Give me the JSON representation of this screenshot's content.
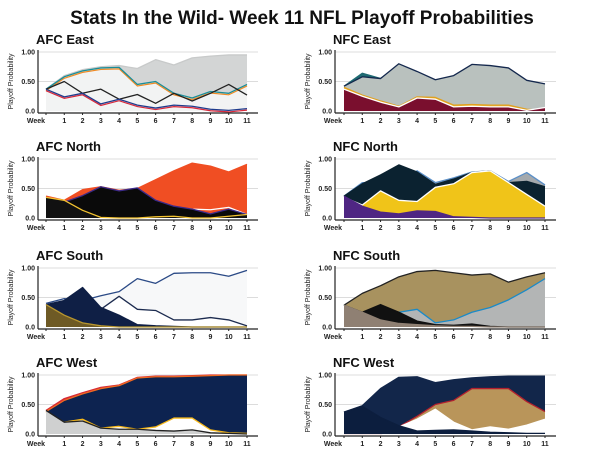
{
  "chart_data": {
    "title": "Stats In the Wild- Week 11 NFL Playoff Probabilities",
    "panels": [
      {
        "title": "AFC East",
        "type": "area",
        "ylabel": "Playoff Probability",
        "x_tick_labels": [
          "Week",
          "1",
          "2",
          "3",
          "4",
          "5",
          "6",
          "7",
          "8",
          "9",
          "10",
          "11"
        ],
        "y_tick_labels": [
          "1.00",
          "0.50",
          "0.0"
        ],
        "ylim": [
          0,
          1
        ],
        "grid": true,
        "series": [
          {
            "fill": "#d3d5d5",
            "stroke": "#c8caca",
            "values": [
              0.37,
              0.6,
              0.7,
              0.75,
              0.77,
              0.72,
              0.87,
              0.78,
              0.9,
              0.93,
              0.95,
              0.95
            ]
          },
          {
            "fill": "#f2f3f3",
            "stroke": "#1a8d98",
            "stroke2": "#f08a24",
            "values": [
              0.37,
              0.58,
              0.68,
              0.73,
              0.74,
              0.45,
              0.5,
              0.3,
              0.22,
              0.33,
              0.3,
              0.45
            ]
          },
          {
            "fill": "none",
            "stroke": "#222222",
            "values": [
              0.37,
              0.5,
              0.3,
              0.37,
              0.2,
              0.28,
              0.13,
              0.3,
              0.17,
              0.3,
              0.45,
              0.27
            ]
          },
          {
            "fill": "none",
            "stroke": "#1f3b8c",
            "stroke2": "#d8283a",
            "values": [
              0.37,
              0.24,
              0.3,
              0.12,
              0.2,
              0.1,
              0.05,
              0.1,
              0.08,
              0.03,
              0.01,
              0.04
            ]
          }
        ]
      },
      {
        "title": "NFC East",
        "type": "area",
        "ylabel": "Playoff Probability",
        "x_tick_labels": [
          "Week",
          "1",
          "2",
          "3",
          "4",
          "5",
          "6",
          "7",
          "8",
          "9",
          "10",
          "11"
        ],
        "y_tick_labels": [
          "1.00",
          "0.50",
          "0.0"
        ],
        "ylim": [
          0,
          1
        ],
        "grid": true,
        "series": [
          {
            "fill": "#1f6a72",
            "stroke": "#1f6a72",
            "values": [
              0.42,
              0.64,
              0.55,
              0.78,
              0.65,
              0.5,
              0.58,
              0.76,
              0.74,
              0.7,
              0.5,
              0.44
            ]
          },
          {
            "fill": "#b9c1be",
            "stroke": "#14284d",
            "values": [
              0.42,
              0.58,
              0.55,
              0.8,
              0.67,
              0.53,
              0.6,
              0.79,
              0.77,
              0.73,
              0.52,
              0.46
            ]
          },
          {
            "fill": "#f2b630",
            "stroke": "#e0a020",
            "values": [
              0.4,
              0.27,
              0.17,
              0.08,
              0.24,
              0.23,
              0.1,
              0.11,
              0.1,
              0.1,
              0.03,
              0.01
            ]
          },
          {
            "fill": "#7a0f2e",
            "stroke": "#ffffff",
            "values": [
              0.37,
              0.25,
              0.15,
              0.07,
              0.22,
              0.2,
              0.07,
              0.08,
              0.07,
              0.07,
              0.01,
              0.06
            ]
          }
        ]
      },
      {
        "title": "AFC North",
        "type": "area",
        "ylabel": "Playoff Probability",
        "x_tick_labels": [
          "Week",
          "1",
          "2",
          "3",
          "4",
          "5",
          "6",
          "7",
          "8",
          "9",
          "10",
          "11"
        ],
        "y_tick_labels": [
          "1.00",
          "0.50",
          "0.0"
        ],
        "ylim": [
          0,
          1
        ],
        "grid": true,
        "series": [
          {
            "fill": "#f04e23",
            "stroke": "#f04e23",
            "values": [
              0.37,
              0.3,
              0.48,
              0.53,
              0.47,
              0.5,
              0.65,
              0.8,
              0.93,
              0.88,
              0.78,
              0.91
            ]
          },
          {
            "fill": "#f04e23",
            "stroke": "#ffffff",
            "values": [
              0.3,
              0.25,
              0.3,
              0.35,
              0.3,
              0.28,
              0.2,
              0.18,
              0.15,
              0.14,
              0.18,
              0.06
            ]
          },
          {
            "fill": "#0a0a0a",
            "stroke": "#3b2a8a",
            "values": [
              0.35,
              0.27,
              0.38,
              0.53,
              0.46,
              0.51,
              0.3,
              0.2,
              0.15,
              0.07,
              0.15,
              0.06
            ]
          },
          {
            "fill": "#111111",
            "stroke": "#f2c230",
            "values": [
              0.35,
              0.3,
              0.13,
              0.01,
              0.0,
              0.0,
              0.02,
              0.03,
              0.0,
              0.0,
              0.03,
              0.06
            ]
          }
        ]
      },
      {
        "title": "NFC North",
        "type": "area",
        "ylabel": "Playoff Probability",
        "x_tick_labels": [
          "Week",
          "1",
          "2",
          "3",
          "4",
          "5",
          "6",
          "7",
          "8",
          "9",
          "10",
          "11"
        ],
        "y_tick_labels": [
          "1.00",
          "0.50",
          "0.0"
        ],
        "ylim": [
          0,
          1
        ],
        "grid": true,
        "series": [
          {
            "fill": "#a4a9ad",
            "stroke": "#5a8fc8",
            "values": [
              0.37,
              0.6,
              0.6,
              0.6,
              0.8,
              0.6,
              0.68,
              0.78,
              0.8,
              0.62,
              0.77,
              0.56
            ]
          },
          {
            "fill": "#0b2230",
            "stroke": "#0b2230",
            "values": [
              0.37,
              0.58,
              0.73,
              0.9,
              0.78,
              0.57,
              0.66,
              0.77,
              0.8,
              0.6,
              0.62,
              0.53
            ]
          },
          {
            "fill": "#f0c419",
            "stroke": "#ffffff",
            "values": [
              0.35,
              0.22,
              0.46,
              0.3,
              0.28,
              0.52,
              0.58,
              0.77,
              0.8,
              0.6,
              0.4,
              0.2
            ]
          },
          {
            "fill": "#4f2683",
            "stroke": "#4f2683",
            "values": [
              0.37,
              0.2,
              0.1,
              0.07,
              0.12,
              0.11,
              0.02,
              0.01,
              0.0,
              0.0,
              0.0,
              0.0
            ]
          }
        ]
      },
      {
        "title": "AFC South",
        "type": "area",
        "ylabel": "Playoff Probability",
        "x_tick_labels": [
          "Week",
          "1",
          "2",
          "3",
          "4",
          "5",
          "6",
          "7",
          "8",
          "9",
          "10",
          "11"
        ],
        "y_tick_labels": [
          "1.00",
          "0.50",
          "0.0"
        ],
        "ylim": [
          0,
          1
        ],
        "grid": true,
        "series": [
          {
            "fill": "#f7f8f9",
            "stroke": "#2b4a86",
            "values": [
              0.4,
              0.48,
              0.45,
              0.53,
              0.6,
              0.82,
              0.74,
              0.91,
              0.92,
              0.92,
              0.86,
              0.96
            ]
          },
          {
            "fill": "#ffffff",
            "stroke": "#1c2b4f",
            "values": [
              0.38,
              0.3,
              0.28,
              0.3,
              0.52,
              0.3,
              0.28,
              0.12,
              0.12,
              0.16,
              0.12,
              0.02
            ]
          },
          {
            "fill": "#0f1f45",
            "stroke": "#0f1f45",
            "values": [
              0.38,
              0.45,
              0.67,
              0.33,
              0.2,
              0.04,
              0.02,
              0.01,
              0.0,
              0.0,
              0.0,
              0.0
            ]
          },
          {
            "fill": "#6e5a25",
            "stroke": "#b8962e",
            "values": [
              0.38,
              0.2,
              0.07,
              0.02,
              0.0,
              0.0,
              0.0,
              0.0,
              0.0,
              0.0,
              0.0,
              0.0
            ]
          }
        ]
      },
      {
        "title": "NFC South",
        "type": "area",
        "ylabel": "Playoff Probability",
        "x_tick_labels": [
          "Week",
          "1",
          "2",
          "3",
          "4",
          "5",
          "6",
          "7",
          "8",
          "9",
          "10",
          "11"
        ],
        "y_tick_labels": [
          "1.00",
          "0.50",
          "0.0"
        ],
        "ylim": [
          0,
          1
        ],
        "grid": true,
        "series": [
          {
            "fill": "#a8925f",
            "stroke": "#222222",
            "values": [
              0.37,
              0.57,
              0.7,
              0.85,
              0.94,
              0.96,
              0.92,
              0.88,
              0.9,
              0.76,
              0.85,
              0.92
            ]
          },
          {
            "fill": "#b3b5b5",
            "stroke": "#1a8ac8",
            "values": [
              0.37,
              0.2,
              0.2,
              0.25,
              0.3,
              0.07,
              0.12,
              0.25,
              0.33,
              0.46,
              0.63,
              0.82
            ]
          },
          {
            "fill": "#111111",
            "stroke": "#111111",
            "values": [
              0.37,
              0.25,
              0.38,
              0.25,
              0.1,
              0.04,
              0.03,
              0.05,
              0.01,
              0.0,
              0.0,
              0.0
            ]
          },
          {
            "fill": "#8f8073",
            "stroke": "#8f8073",
            "values": [
              0.37,
              0.25,
              0.12,
              0.06,
              0.04,
              0.02,
              0.01,
              0.01,
              0.0,
              0.0,
              0.0,
              0.0
            ]
          }
        ]
      },
      {
        "title": "AFC West",
        "type": "area",
        "ylabel": "Playoff Probability",
        "x_tick_labels": [
          "Week",
          "1",
          "2",
          "3",
          "4",
          "5",
          "6",
          "7",
          "8",
          "9",
          "10",
          "11"
        ],
        "y_tick_labels": [
          "1.00",
          "0.50",
          "0.0"
        ],
        "ylim": [
          0,
          1
        ],
        "grid": true,
        "series": [
          {
            "fill": "#d62a36",
            "stroke": "#d62a36",
            "values": [
              0.4,
              0.6,
              0.7,
              0.79,
              0.83,
              0.96,
              0.98,
              0.98,
              0.99,
              1.0,
              1.0,
              1.0
            ]
          },
          {
            "fill": "#0d2350",
            "stroke": "#f06a20",
            "values": [
              0.38,
              0.57,
              0.68,
              0.77,
              0.82,
              0.95,
              0.97,
              0.97,
              0.98,
              0.99,
              1.0,
              1.0
            ]
          },
          {
            "fill": "#ffffff",
            "stroke": "#f6b81a",
            "values": [
              0.37,
              0.2,
              0.25,
              0.1,
              0.13,
              0.08,
              0.12,
              0.27,
              0.27,
              0.07,
              0.02,
              0.01
            ]
          },
          {
            "fill": "#cfd0d0",
            "stroke": "#222222",
            "values": [
              0.4,
              0.2,
              0.22,
              0.1,
              0.08,
              0.08,
              0.06,
              0.05,
              0.07,
              0.02,
              0.01,
              0.0
            ]
          }
        ]
      },
      {
        "title": "NFC West",
        "type": "area",
        "ylabel": "Playoff Probability",
        "x_tick_labels": [
          "Week",
          "1",
          "2",
          "3",
          "4",
          "5",
          "6",
          "7",
          "8",
          "9",
          "10",
          "11"
        ],
        "y_tick_labels": [
          "1.00",
          "0.50",
          "0.0"
        ],
        "ylim": [
          0,
          1
        ],
        "grid": true,
        "series": [
          {
            "fill": "#12264a",
            "stroke": "#12264a",
            "values": [
              0.37,
              0.48,
              0.77,
              0.96,
              0.97,
              0.87,
              0.92,
              0.95,
              0.97,
              0.98,
              0.98,
              0.98
            ]
          },
          {
            "fill": "#b9955a",
            "stroke": "#b3202e",
            "values": [
              0.0,
              0.0,
              0.0,
              0.12,
              0.3,
              0.5,
              0.57,
              0.77,
              0.77,
              0.77,
              0.55,
              0.38
            ]
          },
          {
            "fill": "#ffffff",
            "stroke": "#ffffff",
            "values": [
              0.0,
              0.0,
              0.0,
              0.12,
              0.25,
              0.42,
              0.2,
              0.07,
              0.12,
              0.08,
              0.15,
              0.25
            ]
          },
          {
            "fill": "#0c1e3e",
            "stroke": "#0c1e3e",
            "values": [
              0.37,
              0.47,
              0.28,
              0.14,
              0.05,
              0.06,
              0.07,
              0.05,
              0.03,
              0.02,
              0.01,
              0.01
            ]
          }
        ]
      }
    ]
  }
}
